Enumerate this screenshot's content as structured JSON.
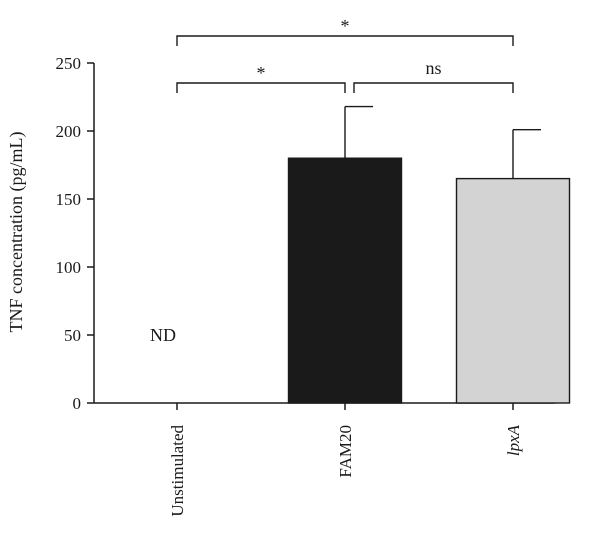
{
  "chart_data": {
    "type": "bar",
    "title": "",
    "xlabel": "",
    "ylabel": "TNF concentration (pg/mL)",
    "ylim": [
      0,
      250
    ],
    "yticks": [
      0,
      50,
      100,
      150,
      200,
      250
    ],
    "categories": [
      "Unstimulated",
      "FAM20",
      "lpxA"
    ],
    "category_italic": [
      false,
      false,
      true
    ],
    "values": [
      0,
      180,
      165
    ],
    "errors": [
      0,
      38,
      36
    ],
    "bar_colors": [
      "#ffffff",
      "#1a1a1a",
      "#d3d3d3"
    ],
    "value_labels": [
      "ND",
      "",
      ""
    ],
    "grid": false,
    "significance": [
      {
        "from": 0,
        "to": 2,
        "label": "*",
        "level": 2
      },
      {
        "from": 0,
        "to": 1,
        "label": "*",
        "level": 1
      },
      {
        "from": 1,
        "to": 2,
        "label": "ns",
        "level": 1
      }
    ]
  }
}
